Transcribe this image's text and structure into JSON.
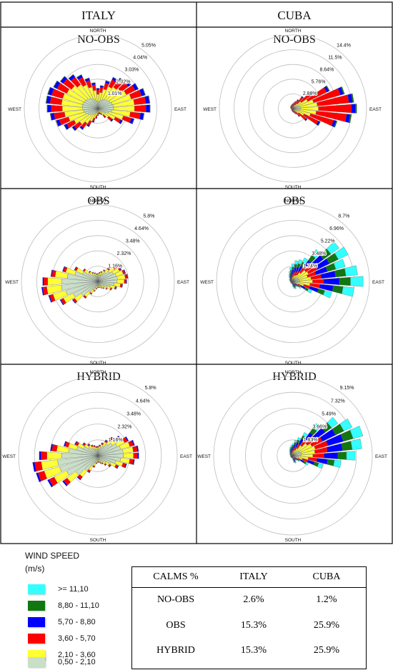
{
  "columns": [
    "ITALY",
    "CUBA"
  ],
  "rows": [
    "NO-OBS",
    "OBS",
    "HYBRID"
  ],
  "colors": {
    "calm": "#c9dfc7",
    "s0": "#c9dfc7",
    "s1": "#ffff33",
    "s2": "#ff0000",
    "s3": "#0000ff",
    "s4": "#117711",
    "s5": "#33ffff",
    "outline": "#555555",
    "ring": "#bdbdbd"
  },
  "legend": {
    "title_line1": "WIND SPEED",
    "title_line2": "(m/s)",
    "items": [
      {
        "label": ">= 11,10",
        "color": "#33ffff"
      },
      {
        "label": "8,80 - 11,10",
        "color": "#117711"
      },
      {
        "label": "5,70 - 8,80",
        "color": "#0000ff"
      },
      {
        "label": "3,60 - 5,70",
        "color": "#ff0000"
      },
      {
        "label": "2,10 - 3,60",
        "color": "#ffff33"
      },
      {
        "label": "0,50 - 2,10",
        "color": "#c9dfc7"
      }
    ]
  },
  "calms_table": {
    "headers": [
      "CALMS %",
      "ITALY",
      "CUBA"
    ],
    "rows": [
      {
        "label": "NO-OBS",
        "italy": "2.6%",
        "cuba": "1.2%"
      },
      {
        "label": "OBS",
        "italy": "15.3%",
        "cuba": "25.9%"
      },
      {
        "label": "HYBRID",
        "italy": "15.3%",
        "cuba": "25.9%"
      }
    ]
  },
  "chart_data": [
    {
      "type": "wind-rose",
      "title": "NO-OBS",
      "site": "ITALY",
      "directions": [
        "NORTH",
        "EAST",
        "SOUTH",
        "WEST"
      ],
      "ring_labels": [
        "1.01%",
        "2.02%",
        "3.03%",
        "4.04%",
        "5.05%"
      ],
      "ring_max": 5.05,
      "sectors": 36,
      "speed_bins": [
        "0,50 - 2,10",
        "2,10 - 3,60",
        "3,60 - 5,70",
        "5,70 - 8,80",
        "8,80 - 11,10",
        ">= 11,10"
      ],
      "totals": [
        1.4,
        1.6,
        2.0,
        2.4,
        2.6,
        2.8,
        3.1,
        3.4,
        3.6,
        3.6,
        3.2,
        2.6,
        1.9,
        1.3,
        0.8,
        0.5,
        0.4,
        0.4,
        0.5,
        0.7,
        1.0,
        1.4,
        1.8,
        2.2,
        2.6,
        3.0,
        3.3,
        3.5,
        3.6,
        3.6,
        3.4,
        3.2,
        2.9,
        2.6,
        2.2,
        1.8
      ],
      "mix": [
        0.3,
        0.4,
        0.22,
        0.07,
        0.01,
        0.0
      ]
    },
    {
      "type": "wind-rose",
      "title": "NO-OBS",
      "site": "CUBA",
      "directions": [
        "NORTH",
        "EAST",
        "SOUTH",
        "WEST"
      ],
      "ring_labels": [
        "2.88%",
        "5.76%",
        "8.64%",
        "11.5%",
        "14.4%"
      ],
      "ring_max": 14.4,
      "sectors": 36,
      "speed_bins": [
        "0,50 - 2,10",
        "2,10 - 3,60",
        "3,60 - 5,70",
        "5,70 - 8,80",
        "8,80 - 11,10",
        ">= 11,10"
      ],
      "totals": [
        1.0,
        1.2,
        1.5,
        2.0,
        3.0,
        5.0,
        8.0,
        10.5,
        12.0,
        12.5,
        11.5,
        9.0,
        6.0,
        3.5,
        2.0,
        1.3,
        1.0,
        0.8,
        0.7,
        0.6,
        0.5,
        0.5,
        0.4,
        0.4,
        0.4,
        0.4,
        0.4,
        0.4,
        0.5,
        0.5,
        0.6,
        0.6,
        0.7,
        0.7,
        0.8,
        0.9
      ],
      "mix": [
        0.12,
        0.28,
        0.52,
        0.06,
        0.02,
        0.0
      ]
    },
    {
      "type": "wind-rose",
      "title": "OBS",
      "site": "ITALY",
      "directions": [
        "NORTH",
        "EAST",
        "SOUTH",
        "WEST"
      ],
      "ring_labels": [
        "1.16%",
        "2.32%",
        "3.48%",
        "4.64%",
        "5.8%"
      ],
      "ring_max": 5.8,
      "sectors": 36,
      "speed_bins": [
        "0,50 - 2,10",
        "2,10 - 3,60",
        "3,60 - 5,70",
        "5,70 - 8,80",
        "8,80 - 11,10",
        ">= 11,10"
      ],
      "totals": [
        0.6,
        0.7,
        0.8,
        1.0,
        1.3,
        1.7,
        2.0,
        2.2,
        2.3,
        2.2,
        1.9,
        1.5,
        1.2,
        0.9,
        0.7,
        0.6,
        0.5,
        0.5,
        0.5,
        0.6,
        0.8,
        1.1,
        1.6,
        2.4,
        3.2,
        3.9,
        4.3,
        4.2,
        3.6,
        2.8,
        2.0,
        1.4,
        1.0,
        0.8,
        0.7,
        0.6
      ],
      "mix": [
        0.65,
        0.26,
        0.07,
        0.02,
        0.0,
        0.0
      ]
    },
    {
      "type": "wind-rose",
      "title": "OBS",
      "site": "CUBA",
      "directions": [
        "NORTH",
        "EAST",
        "SOUTH",
        "WEST"
      ],
      "ring_labels": [
        "1.74%",
        "3.48%",
        "5.22%",
        "6.96%",
        "8.7%"
      ],
      "ring_max": 8.7,
      "sectors": 36,
      "speed_bins": [
        "0,50 - 2,10",
        "2,10 - 3,60",
        "3,60 - 5,70",
        "5,70 - 8,80",
        "8,80 - 11,10",
        ">= 11,10"
      ],
      "totals": [
        2.0,
        2.4,
        2.6,
        3.0,
        4.5,
        6.5,
        7.0,
        6.2,
        7.4,
        8.0,
        7.0,
        4.6,
        2.4,
        1.2,
        0.8,
        0.7,
        0.9,
        0.8,
        0.6,
        0.4,
        0.3,
        0.3,
        0.3,
        0.3,
        0.3,
        0.3,
        0.3,
        0.3,
        0.4,
        0.4,
        0.5,
        0.5,
        0.7,
        0.9,
        1.2,
        1.6
      ],
      "mix": [
        0.1,
        0.18,
        0.16,
        0.22,
        0.16,
        0.18
      ]
    },
    {
      "type": "wind-rose",
      "title": "HYBRID",
      "site": "ITALY",
      "directions": [
        "NORTH",
        "EAST",
        "SOUTH",
        "WEST"
      ],
      "ring_labels": [
        "1.16%",
        "2.32%",
        "3.48%",
        "4.64%",
        "5.8%"
      ],
      "ring_max": 5.8,
      "sectors": 36,
      "speed_bins": [
        "0,50 - 2,10",
        "2,10 - 3,60",
        "3,60 - 5,70",
        "5,70 - 8,80",
        "8,80 - 11,10",
        ">= 11,10"
      ],
      "totals": [
        0.7,
        0.8,
        1.0,
        1.3,
        1.7,
        2.1,
        2.5,
        2.8,
        3.0,
        3.0,
        2.7,
        2.2,
        1.7,
        1.2,
        0.9,
        0.7,
        0.6,
        0.5,
        0.5,
        0.6,
        0.9,
        1.4,
        2.2,
        3.2,
        4.1,
        4.7,
        4.8,
        4.3,
        3.5,
        2.6,
        1.9,
        1.4,
        1.1,
        0.9,
        0.8,
        0.7
      ],
      "mix": [
        0.62,
        0.25,
        0.1,
        0.03,
        0.0,
        0.0
      ]
    },
    {
      "type": "wind-rose",
      "title": "HYBRID",
      "site": "CUBA",
      "directions": [
        "NORTH",
        "EAST",
        "SOUTH",
        "WEST"
      ],
      "ring_labels": [
        "1.83%",
        "3.66%",
        "5.49%",
        "7.32%",
        "9.15%"
      ],
      "ring_max": 9.15,
      "sectors": 36,
      "speed_bins": [
        "0,50 - 2,10",
        "2,10 - 3,60",
        "3,60 - 5,70",
        "5,70 - 8,80",
        "8,80 - 11,10",
        ">= 11,10"
      ],
      "totals": [
        1.4,
        1.8,
        2.2,
        3.0,
        4.6,
        6.4,
        7.6,
        8.4,
        8.0,
        7.2,
        5.6,
        3.6,
        2.0,
        1.0,
        0.7,
        0.6,
        0.9,
        0.8,
        0.5,
        0.3,
        0.3,
        0.3,
        0.3,
        0.3,
        0.3,
        0.3,
        0.3,
        0.3,
        0.3,
        0.4,
        0.4,
        0.5,
        0.6,
        0.8,
        1.0,
        1.2
      ],
      "mix": [
        0.12,
        0.2,
        0.18,
        0.22,
        0.14,
        0.14
      ]
    }
  ]
}
